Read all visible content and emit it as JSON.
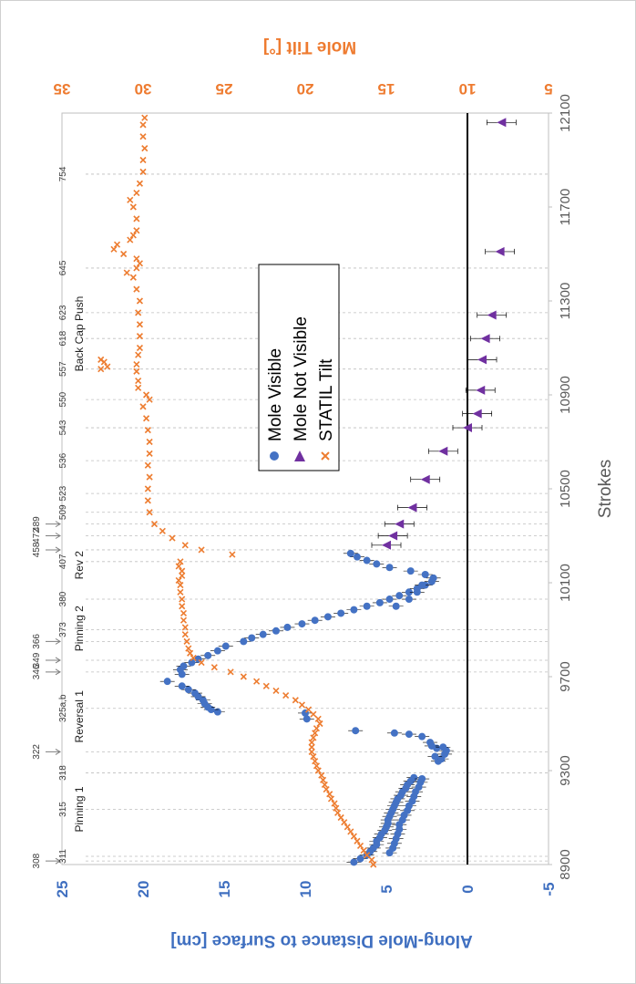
{
  "chart_data": {
    "type": "scatter",
    "orientation": "rotated 90 degrees clockwise",
    "x_axis": {
      "label": "Strokes",
      "range": [
        8900,
        12100
      ],
      "ticks": [
        8900,
        9300,
        9700,
        10100,
        10500,
        10900,
        11300,
        11700,
        12100
      ],
      "tick_labels": [
        "8900",
        "9300",
        "9700",
        "10100",
        "10500",
        "10900",
        "11300",
        "11700",
        "12100"
      ]
    },
    "y_axis_left": {
      "label": "Along-Mole Distance to Surface  [cm]",
      "range": [
        -5,
        25
      ],
      "ticks": [
        -5,
        0,
        5,
        10,
        15,
        20,
        25
      ],
      "tick_labels": [
        "-5",
        "0",
        "5",
        "10",
        "15",
        "20",
        "25"
      ],
      "color": "#3f6fc0"
    },
    "y_axis_right": {
      "label": "Mole Tilt [°]",
      "range": [
        5,
        35
      ],
      "ticks": [
        5,
        10,
        15,
        20,
        25,
        30,
        35
      ],
      "tick_labels": [
        "5",
        "10",
        "15",
        "20",
        "25",
        "30",
        "35"
      ],
      "color": "#ee7b30"
    },
    "legend": {
      "placement": "center",
      "entries": [
        {
          "label": "Mole Visible",
          "marker": "circle",
          "color": "#4472c4"
        },
        {
          "label": "Mole Not Visible",
          "marker": "triangle",
          "color": "#7030a0"
        },
        {
          "label": "STATIL Tilt",
          "marker": "x",
          "color": "#ed7d31"
        }
      ]
    },
    "phases": [
      {
        "label": "Pinning 1",
        "start": 8910,
        "end": 9360,
        "color": "#c5e0b4"
      },
      {
        "label": "Reversal 1",
        "start": 9360,
        "end": 9700,
        "color": "#f8cbad"
      },
      {
        "label": "Pinning 2",
        "start": 9700,
        "end": 10110,
        "color": "#c5e0b4"
      },
      {
        "label": "Rev 2",
        "start": 10110,
        "end": 10240,
        "color": "#f8cbad"
      },
      {
        "label": "Back Cap Push",
        "start": 10240,
        "end": 12080,
        "color": "#c5e0b4"
      }
    ],
    "sols": [
      {
        "label": "308",
        "x": 8915,
        "arrow": true
      },
      {
        "label": "311",
        "x": 8935,
        "arrow": false
      },
      {
        "label": "315",
        "x": 9135,
        "arrow": false
      },
      {
        "label": "318",
        "x": 9290,
        "arrow": false
      },
      {
        "label": "322",
        "x": 9380,
        "arrow": true
      },
      {
        "label": "325a,b",
        "x": 9565,
        "arrow": false
      },
      {
        "label": "346",
        "x": 9720,
        "arrow": true
      },
      {
        "label": "349",
        "x": 9770,
        "arrow": true
      },
      {
        "label": "366",
        "x": 9850,
        "arrow": true
      },
      {
        "label": "373",
        "x": 9900,
        "arrow": false
      },
      {
        "label": "380",
        "x": 10030,
        "arrow": false
      },
      {
        "label": "407",
        "x": 10190,
        "arrow": false
      },
      {
        "label": "458",
        "x": 10240,
        "arrow": true
      },
      {
        "label": "472",
        "x": 10300,
        "arrow": true
      },
      {
        "label": "489",
        "x": 10350,
        "arrow": true
      },
      {
        "label": "509",
        "x": 10400,
        "arrow": false
      },
      {
        "label": "523",
        "x": 10480,
        "arrow": false
      },
      {
        "label": "536",
        "x": 10620,
        "arrow": false
      },
      {
        "label": "543",
        "x": 10760,
        "arrow": false
      },
      {
        "label": "550",
        "x": 10880,
        "arrow": false
      },
      {
        "label": "557",
        "x": 11010,
        "arrow": false
      },
      {
        "label": "618",
        "x": 11140,
        "arrow": false
      },
      {
        "label": "623",
        "x": 11250,
        "arrow": false
      },
      {
        "label": "645",
        "x": 11440,
        "arrow": false
      },
      {
        "label": "754",
        "x": 11840,
        "arrow": false
      }
    ],
    "series": [
      {
        "name": "Mole Visible",
        "marker": "circle",
        "color": "#4472c4",
        "points": [
          [
            8910,
            7.0
          ],
          [
            8925,
            6.6
          ],
          [
            8940,
            6.2
          ],
          [
            8955,
            6.0
          ],
          [
            8970,
            5.8
          ],
          [
            8985,
            5.6
          ],
          [
            9000,
            5.6
          ],
          [
            9015,
            5.4
          ],
          [
            9030,
            5.3
          ],
          [
            9045,
            5.1
          ],
          [
            9060,
            5.0
          ],
          [
            9075,
            4.9
          ],
          [
            9090,
            4.9
          ],
          [
            9105,
            4.8
          ],
          [
            9120,
            4.7
          ],
          [
            9135,
            4.6
          ],
          [
            9150,
            4.5
          ],
          [
            9165,
            4.4
          ],
          [
            9180,
            4.3
          ],
          [
            9195,
            4.1
          ],
          [
            9210,
            4.0
          ],
          [
            9225,
            3.8
          ],
          [
            9240,
            3.7
          ],
          [
            9255,
            3.5
          ],
          [
            9270,
            3.3
          ],
          [
            8950,
            4.8
          ],
          [
            8970,
            4.6
          ],
          [
            8990,
            4.5
          ],
          [
            9010,
            4.4
          ],
          [
            9030,
            4.3
          ],
          [
            9050,
            4.2
          ],
          [
            9070,
            4.2
          ],
          [
            9090,
            4.0
          ],
          [
            9110,
            3.9
          ],
          [
            9130,
            3.7
          ],
          [
            9150,
            3.6
          ],
          [
            9170,
            3.4
          ],
          [
            9190,
            3.3
          ],
          [
            9210,
            3.2
          ],
          [
            9230,
            3.0
          ],
          [
            9250,
            2.9
          ],
          [
            9265,
            2.8
          ],
          [
            9340,
            1.8
          ],
          [
            9350,
            1.6
          ],
          [
            9360,
            2.0
          ],
          [
            9370,
            1.4
          ],
          [
            9385,
            1.3
          ],
          [
            9395,
            1.9
          ],
          [
            9400,
            1.5
          ],
          [
            9405,
            2.2
          ],
          [
            9420,
            2.3
          ],
          [
            9445,
            2.8
          ],
          [
            9455,
            3.6
          ],
          [
            9460,
            4.5
          ],
          [
            9470,
            6.9
          ],
          [
            9520,
            9.9
          ],
          [
            9545,
            10.0
          ],
          [
            9550,
            15.4
          ],
          [
            9560,
            15.8
          ],
          [
            9570,
            16.0
          ],
          [
            9585,
            16.2
          ],
          [
            9600,
            16.3
          ],
          [
            9615,
            16.6
          ],
          [
            9630,
            16.8
          ],
          [
            9645,
            17.2
          ],
          [
            9660,
            17.6
          ],
          [
            9680,
            18.5
          ],
          [
            9710,
            17.6
          ],
          [
            9730,
            17.7
          ],
          [
            9745,
            17.5
          ],
          [
            9760,
            17.0
          ],
          [
            9775,
            16.6
          ],
          [
            9790,
            16.0
          ],
          [
            9810,
            15.4
          ],
          [
            9830,
            14.9
          ],
          [
            9850,
            13.8
          ],
          [
            9865,
            13.3
          ],
          [
            9880,
            12.6
          ],
          [
            9895,
            11.8
          ],
          [
            9910,
            11.1
          ],
          [
            9925,
            10.2
          ],
          [
            9940,
            9.4
          ],
          [
            9955,
            8.6
          ],
          [
            9970,
            7.8
          ],
          [
            9985,
            7.0
          ],
          [
            10000,
            6.2
          ],
          [
            10015,
            5.4
          ],
          [
            10030,
            4.8
          ],
          [
            10045,
            4.2
          ],
          [
            10060,
            3.6
          ],
          [
            10075,
            3.1
          ],
          [
            10090,
            2.6
          ],
          [
            10105,
            2.2
          ],
          [
            10120,
            2.1
          ],
          [
            10135,
            2.6
          ],
          [
            10150,
            3.5
          ],
          [
            10165,
            4.8
          ],
          [
            10180,
            5.6
          ],
          [
            10195,
            6.2
          ],
          [
            10210,
            6.8
          ],
          [
            10225,
            7.2
          ],
          [
            10000,
            4.4
          ],
          [
            10030,
            3.6
          ],
          [
            10060,
            3.1
          ],
          [
            10090,
            2.8
          ]
        ]
      },
      {
        "name": "Mole Not Visible",
        "marker": "triangle",
        "color": "#7030a0",
        "points": [
          [
            10260,
            5.0
          ],
          [
            10300,
            4.6
          ],
          [
            10350,
            4.2
          ],
          [
            10420,
            3.4
          ],
          [
            10540,
            2.6
          ],
          [
            10660,
            1.5
          ],
          [
            10760,
            0.0
          ],
          [
            10820,
            -0.6
          ],
          [
            10920,
            -0.8
          ],
          [
            11050,
            -0.9
          ],
          [
            11140,
            -1.1
          ],
          [
            11240,
            -1.5
          ],
          [
            11510,
            -2.0
          ],
          [
            12060,
            -2.1
          ]
        ]
      },
      {
        "name": "STATIL Tilt",
        "marker": "x",
        "color": "#ed7d31",
        "axis": "right",
        "points": [
          [
            8900,
            15.8
          ],
          [
            8920,
            15.9
          ],
          [
            8940,
            16.2
          ],
          [
            8960,
            16.4
          ],
          [
            8980,
            16.6
          ],
          [
            9000,
            16.8
          ],
          [
            9020,
            17.0
          ],
          [
            9040,
            17.2
          ],
          [
            9060,
            17.4
          ],
          [
            9080,
            17.6
          ],
          [
            9100,
            17.8
          ],
          [
            9120,
            18.0
          ],
          [
            9140,
            18.1
          ],
          [
            9160,
            18.2
          ],
          [
            9180,
            18.4
          ],
          [
            9200,
            18.5
          ],
          [
            9220,
            18.7
          ],
          [
            9240,
            18.8
          ],
          [
            9260,
            18.9
          ],
          [
            9280,
            19.0
          ],
          [
            9300,
            19.2
          ],
          [
            9320,
            19.3
          ],
          [
            9340,
            19.4
          ],
          [
            9360,
            19.5
          ],
          [
            9380,
            19.6
          ],
          [
            9400,
            19.6
          ],
          [
            9420,
            19.6
          ],
          [
            9440,
            19.5
          ],
          [
            9460,
            19.4
          ],
          [
            9480,
            19.3
          ],
          [
            9500,
            19.1
          ],
          [
            9520,
            19.2
          ],
          [
            9540,
            19.5
          ],
          [
            9560,
            19.8
          ],
          [
            9580,
            20.2
          ],
          [
            9600,
            20.6
          ],
          [
            9620,
            21.2
          ],
          [
            9640,
            21.8
          ],
          [
            9660,
            22.4
          ],
          [
            9680,
            23.0
          ],
          [
            9700,
            23.8
          ],
          [
            9720,
            24.6
          ],
          [
            9740,
            25.6
          ],
          [
            9760,
            26.4
          ],
          [
            9780,
            26.9
          ],
          [
            9800,
            27.1
          ],
          [
            9820,
            27.2
          ],
          [
            9850,
            27.3
          ],
          [
            9880,
            27.4
          ],
          [
            9910,
            27.4
          ],
          [
            9940,
            27.5
          ],
          [
            9970,
            27.5
          ],
          [
            10000,
            27.6
          ],
          [
            10030,
            27.6
          ],
          [
            10060,
            27.7
          ],
          [
            10090,
            27.7
          ],
          [
            10110,
            27.8
          ],
          [
            10130,
            27.6
          ],
          [
            10150,
            27.6
          ],
          [
            10170,
            27.8
          ],
          [
            10190,
            27.7
          ],
          [
            10220,
            24.5
          ],
          [
            10240,
            26.4
          ],
          [
            10260,
            27.4
          ],
          [
            10290,
            28.2
          ],
          [
            10320,
            28.8
          ],
          [
            10350,
            29.3
          ],
          [
            10400,
            29.6
          ],
          [
            10450,
            29.7
          ],
          [
            10500,
            29.7
          ],
          [
            10550,
            29.6
          ],
          [
            10600,
            29.7
          ],
          [
            10650,
            29.6
          ],
          [
            10700,
            29.6
          ],
          [
            10750,
            29.7
          ],
          [
            10800,
            29.8
          ],
          [
            10850,
            30.0
          ],
          [
            10880,
            29.6
          ],
          [
            10900,
            29.8
          ],
          [
            10930,
            30.3
          ],
          [
            10960,
            30.3
          ],
          [
            11000,
            30.4
          ],
          [
            11010,
            32.6
          ],
          [
            11020,
            32.2
          ],
          [
            11030,
            30.4
          ],
          [
            11040,
            32.4
          ],
          [
            11050,
            32.6
          ],
          [
            11070,
            30.3
          ],
          [
            11100,
            30.2
          ],
          [
            11150,
            30.2
          ],
          [
            11200,
            30.2
          ],
          [
            11250,
            30.3
          ],
          [
            11300,
            30.2
          ],
          [
            11350,
            30.4
          ],
          [
            11400,
            30.6
          ],
          [
            11420,
            31.0
          ],
          [
            11440,
            30.4
          ],
          [
            11460,
            30.2
          ],
          [
            11480,
            30.4
          ],
          [
            11500,
            31.2
          ],
          [
            11520,
            31.8
          ],
          [
            11540,
            31.6
          ],
          [
            11560,
            30.8
          ],
          [
            11580,
            30.6
          ],
          [
            11600,
            30.4
          ],
          [
            11650,
            30.4
          ],
          [
            11700,
            30.6
          ],
          [
            11730,
            30.8
          ],
          [
            11760,
            30.4
          ],
          [
            11800,
            30.2
          ],
          [
            11850,
            30.0
          ],
          [
            11900,
            30.0
          ],
          [
            11950,
            29.9
          ],
          [
            12000,
            30.0
          ],
          [
            12050,
            30.0
          ],
          [
            12080,
            29.9
          ]
        ]
      }
    ],
    "reference_line": {
      "y": 0,
      "color": "#000000",
      "label": ""
    },
    "grid": "vertical dashed gridlines at sol markers"
  }
}
